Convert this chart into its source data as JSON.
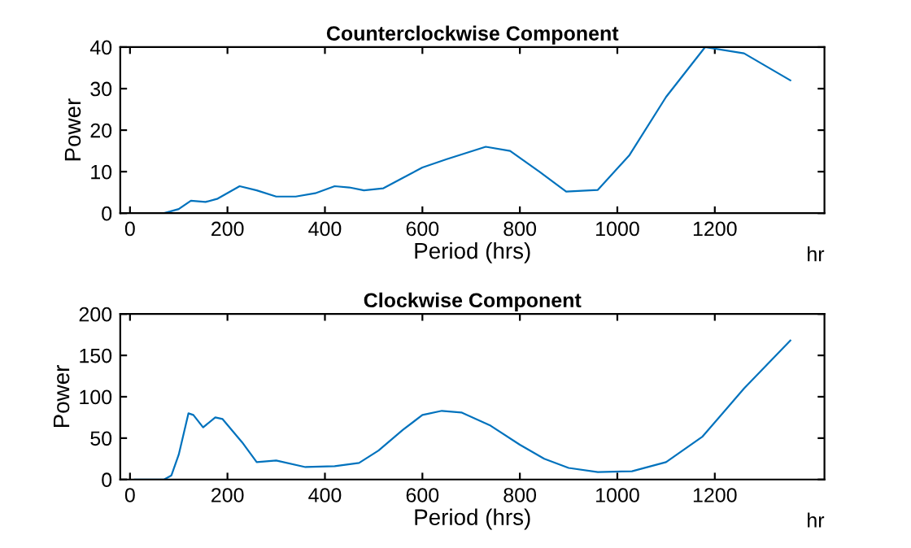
{
  "chart_data": [
    {
      "type": "line",
      "title": "Counterclockwise Component",
      "xlabel": "Period (hrs)",
      "ylabel": "Power",
      "annotations": [
        "hr"
      ],
      "xlim": [
        -20,
        1425
      ],
      "xticks": [
        0,
        200,
        400,
        600,
        800,
        1000,
        1200
      ],
      "ylim": [
        0,
        40
      ],
      "yticks": [
        0,
        10,
        20,
        30,
        40
      ],
      "grid": false,
      "legend": false,
      "series": [
        {
          "color": "#0072bd",
          "x": [
            10,
            70,
            100,
            125,
            155,
            180,
            225,
            260,
            300,
            340,
            380,
            420,
            450,
            480,
            520,
            560,
            600,
            650,
            730,
            780,
            840,
            895,
            960,
            1025,
            1100,
            1180,
            1260,
            1355
          ],
          "values": [
            0,
            0,
            1,
            3,
            2.7,
            3.5,
            6.5,
            5.5,
            4,
            4,
            4.8,
            6.5,
            6.2,
            5.5,
            6,
            8.5,
            11,
            13,
            16,
            15,
            10,
            5.2,
            5.6,
            14,
            28,
            40,
            38.5,
            32
          ]
        }
      ]
    },
    {
      "type": "line",
      "title": "Clockwise Component",
      "xlabel": "Period (hrs)",
      "ylabel": "Power",
      "annotations": [
        "hr"
      ],
      "xlim": [
        -20,
        1425
      ],
      "xticks": [
        0,
        200,
        400,
        600,
        800,
        1000,
        1200
      ],
      "ylim": [
        0,
        200
      ],
      "yticks": [
        0,
        50,
        100,
        150,
        200
      ],
      "grid": false,
      "legend": false,
      "series": [
        {
          "color": "#0072bd",
          "x": [
            10,
            70,
            85,
            100,
            120,
            130,
            150,
            175,
            190,
            230,
            260,
            300,
            360,
            420,
            470,
            510,
            560,
            600,
            640,
            680,
            740,
            800,
            850,
            900,
            960,
            1030,
            1100,
            1175,
            1260,
            1355
          ],
          "values": [
            0,
            0,
            5,
            30,
            80,
            78,
            63,
            75,
            73,
            45,
            21,
            23,
            15,
            16,
            20,
            35,
            60,
            78,
            83,
            81,
            65,
            42,
            25,
            14,
            9,
            10,
            21,
            52,
            110,
            168
          ]
        }
      ]
    }
  ]
}
